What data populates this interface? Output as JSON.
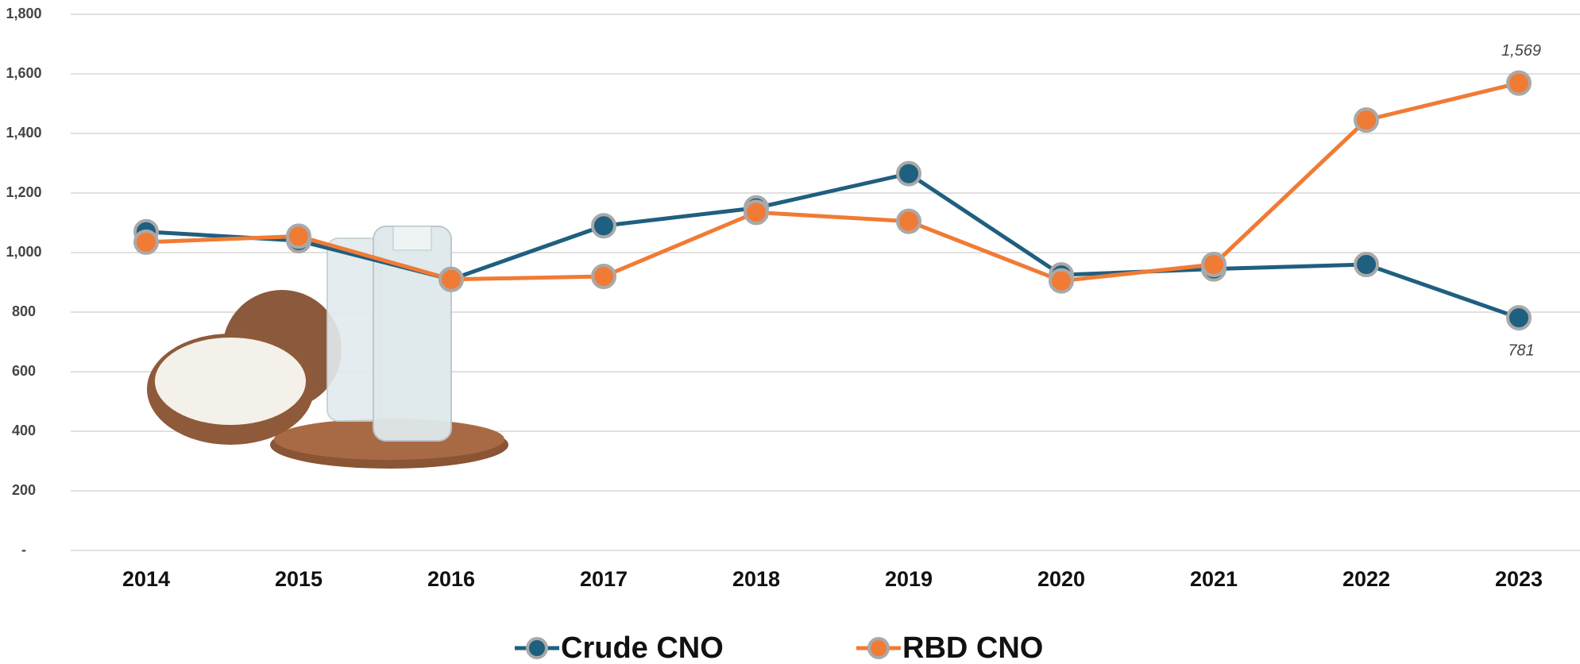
{
  "chart_data": {
    "type": "line",
    "categories": [
      "2014",
      "2015",
      "2016",
      "2017",
      "2018",
      "2019",
      "2020",
      "2021",
      "2022",
      "2023"
    ],
    "series": [
      {
        "name": "Crude CNO",
        "color": "#1f5f7f",
        "values": [
          1070,
          1040,
          910,
          1090,
          1150,
          1265,
          925,
          945,
          960,
          781
        ]
      },
      {
        "name": "RBD CNO",
        "color": "#f07b35",
        "values": [
          1035,
          1055,
          910,
          920,
          1135,
          1105,
          905,
          960,
          1445,
          1569
        ],
        "value_labels": [
          null,
          null,
          null,
          null,
          null,
          null,
          null,
          null,
          null,
          "1,569"
        ]
      }
    ],
    "ylim": [
      0,
      1800
    ],
    "yticks": [
      {
        "value": 0,
        "label": "-"
      },
      200,
      400,
      600,
      800,
      {
        "value": 1000,
        "label": "1,000"
      },
      {
        "value": 1200,
        "label": "1,200"
      },
      {
        "value": 1400,
        "label": "1,400"
      },
      {
        "value": 1600,
        "label": "1,600"
      },
      {
        "value": 1800,
        "label": "1,800"
      }
    ],
    "grid": true
  }
}
